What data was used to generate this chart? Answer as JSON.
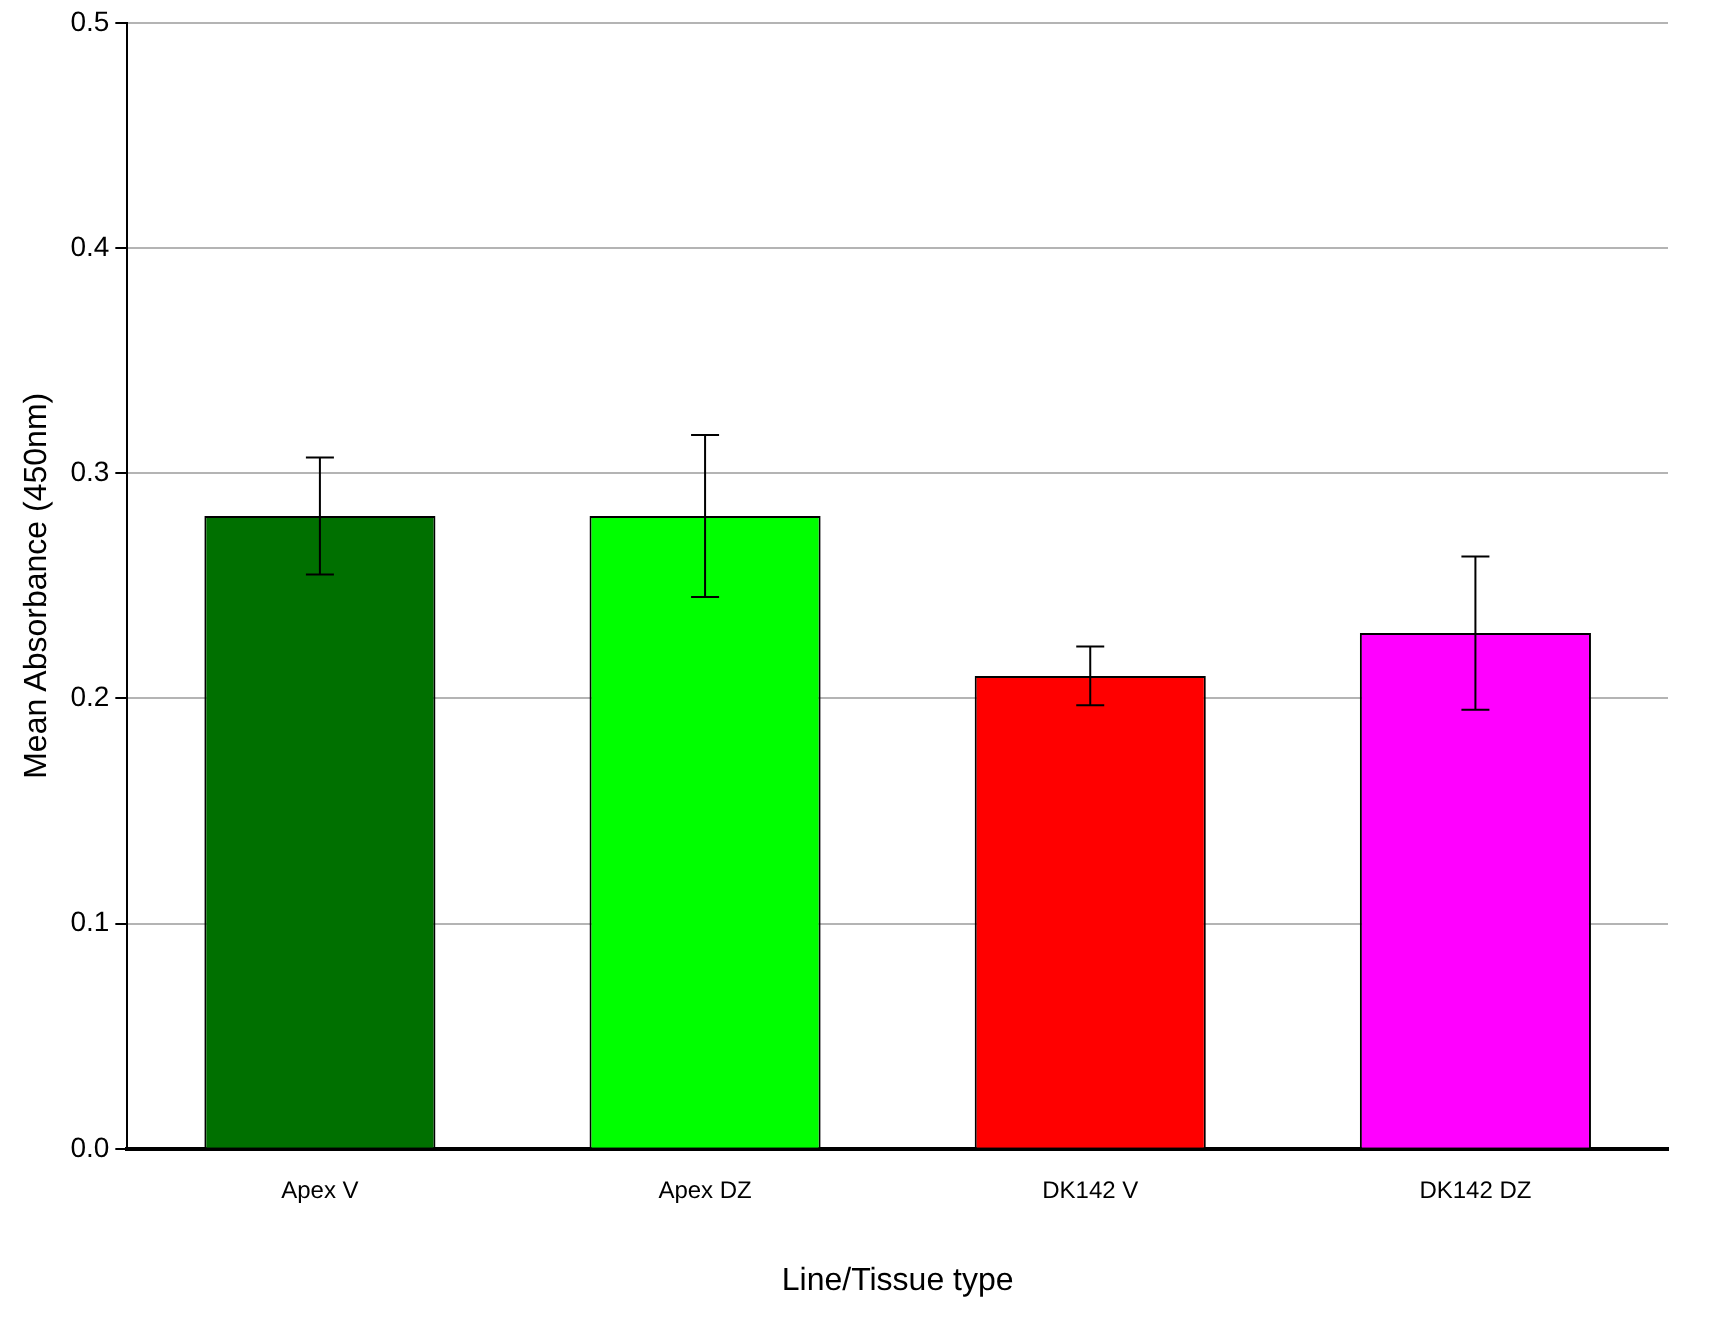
{
  "chart_data": {
    "type": "bar",
    "xlabel": "Line/Tissue type",
    "ylabel": "Mean Absorbance (450nm)",
    "categories": [
      "Apex V",
      "Apex DZ",
      "DK142 V",
      "DK142 DZ"
    ],
    "values": [
      0.281,
      0.281,
      0.21,
      0.229
    ],
    "errors": [
      0.026,
      0.036,
      0.013,
      0.034
    ],
    "colors": [
      "#007000",
      "#00ff00",
      "#ff0000",
      "#ff00ff"
    ],
    "ylim": [
      0,
      0.5
    ],
    "yticks": [
      {
        "value": 0,
        "label": "0.0"
      },
      {
        "value": 0.1,
        "label": "0.1"
      },
      {
        "value": 0.2,
        "label": "0.2"
      },
      {
        "value": 0.3,
        "label": "0.3"
      },
      {
        "value": 0.4,
        "label": "0.4"
      },
      {
        "value": 0.5,
        "label": "0.5"
      }
    ],
    "grid": "y"
  }
}
